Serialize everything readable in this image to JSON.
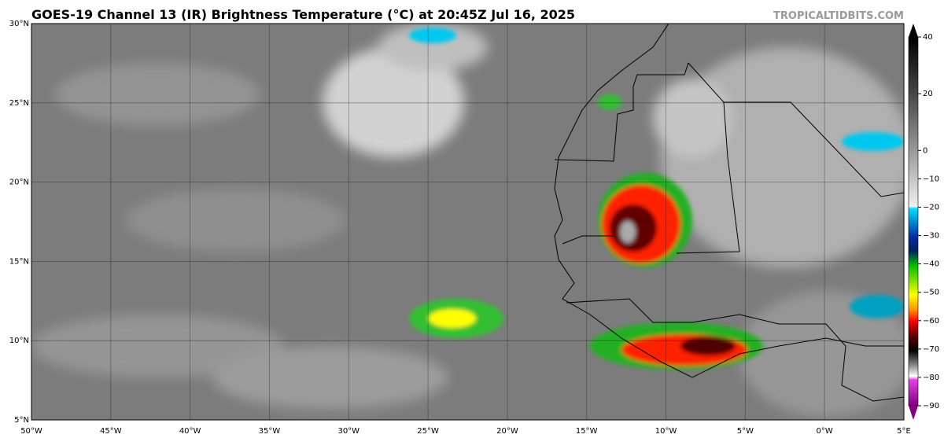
{
  "title": "GOES-19 Channel 13 (IR) Brightness Temperature (°C) at 20:45Z Jul 16, 2025",
  "watermark": "TROPICALTIDBITS.COM",
  "lon_range": [
    -50,
    5
  ],
  "lat_range": [
    5,
    30
  ],
  "lat_labels": [
    {
      "value": 30,
      "label": "30°N"
    },
    {
      "value": 25,
      "label": "25°N"
    },
    {
      "value": 20,
      "label": "20°N"
    },
    {
      "value": 15,
      "label": "15°N"
    },
    {
      "value": 10,
      "label": "10°N"
    },
    {
      "value": 5,
      "label": "5°N"
    }
  ],
  "lon_labels": [
    {
      "value": -50,
      "label": "50°W"
    },
    {
      "value": -45,
      "label": "45°W"
    },
    {
      "value": -40,
      "label": "40°W"
    },
    {
      "value": -35,
      "label": "35°W"
    },
    {
      "value": -30,
      "label": "30°W"
    },
    {
      "value": -25,
      "label": "25°W"
    },
    {
      "value": -20,
      "label": "20°W"
    },
    {
      "value": -15,
      "label": "15°W"
    },
    {
      "value": -10,
      "label": "10°W"
    },
    {
      "value": -5,
      "label": "5°W"
    },
    {
      "value": 0,
      "label": "0°W"
    },
    {
      "value": 5,
      "label": "5°E"
    }
  ],
  "colorbar": {
    "range": [
      -90,
      40
    ],
    "ticks": [
      40,
      20,
      0,
      {
        "value": -10,
        "label": "−10"
      },
      {
        "value": -20,
        "label": "−20"
      },
      {
        "value": -30,
        "label": "−30"
      },
      {
        "value": -40,
        "label": "−40"
      },
      {
        "value": -50,
        "label": "−50"
      },
      {
        "value": -60,
        "label": "−60"
      },
      {
        "value": -70,
        "label": "−70"
      },
      {
        "value": -80,
        "label": "−80"
      },
      {
        "value": -90,
        "label": "−90"
      }
    ]
  }
}
